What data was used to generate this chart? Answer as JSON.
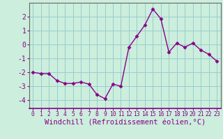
{
  "x": [
    0,
    1,
    2,
    3,
    4,
    5,
    6,
    7,
    8,
    9,
    10,
    11,
    12,
    13,
    14,
    15,
    16,
    17,
    18,
    19,
    20,
    21,
    22,
    23
  ],
  "y": [
    -2.0,
    -2.1,
    -2.1,
    -2.6,
    -2.8,
    -2.8,
    -2.7,
    -2.85,
    -3.6,
    -3.9,
    -2.85,
    -3.0,
    -0.2,
    0.6,
    1.4,
    2.55,
    1.85,
    -0.55,
    0.1,
    -0.2,
    0.1,
    -0.4,
    -0.7,
    -1.2
  ],
  "line_color": "#880088",
  "marker": "D",
  "marker_size": 2.5,
  "bg_color": "#cceedd",
  "grid_color": "#99cccc",
  "xlabel": "Windchill (Refroidissement éolien,°C)",
  "ylabel": "",
  "xlim": [
    -0.5,
    23.5
  ],
  "ylim": [
    -4.6,
    3.0
  ],
  "yticks": [
    -4,
    -3,
    -2,
    -1,
    0,
    1,
    2
  ],
  "xticks": [
    0,
    1,
    2,
    3,
    4,
    5,
    6,
    7,
    8,
    9,
    10,
    11,
    12,
    13,
    14,
    15,
    16,
    17,
    18,
    19,
    20,
    21,
    22,
    23
  ],
  "tick_color": "#880088",
  "label_color": "#880088",
  "axis_color": "#666666",
  "spine_bottom_color": "#880088",
  "xtick_fontsize": 5.8,
  "ytick_fontsize": 7.0,
  "xlabel_fontsize": 7.5
}
